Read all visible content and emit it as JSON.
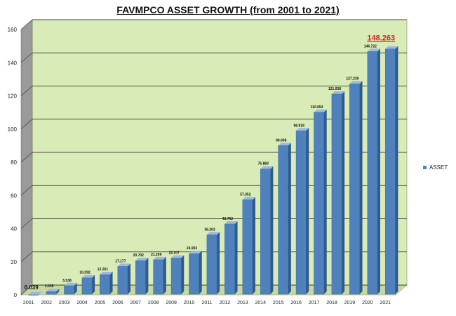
{
  "chart_data": {
    "type": "bar",
    "title": "FAVMPCO ASSET GROWTH (from 2001 to 2021)",
    "xlabel": "",
    "ylabel": "",
    "ylim": [
      0,
      160
    ],
    "yticks": [
      0,
      20,
      40,
      60,
      80,
      100,
      120,
      140,
      160
    ],
    "grid": true,
    "legend_position": "right",
    "categories": [
      "2001",
      "2002",
      "2003",
      "2004",
      "2005",
      "2006",
      "2007",
      "2008",
      "2009",
      "2010",
      "2011",
      "2012",
      "2013",
      "2014",
      "2015",
      "2016",
      "2017",
      "2018",
      "2019",
      "2020",
      "2021"
    ],
    "series": [
      {
        "name": "ASSET",
        "values": [
          0.039,
          2.035,
          5.538,
          10.292,
          12.261,
          17.177,
          20.702,
          21.209,
          22.207,
          24.903,
          36.263,
          42.762,
          57.352,
          75.883,
          90.008,
          98.919,
          110.054,
          121.058,
          127.239,
          146.722,
          148.263
        ],
        "labels": [
          "0.039",
          "2.035",
          "5.538",
          "10.292",
          "12.261",
          "17.177",
          "20.702",
          "21.209",
          "22.207",
          "24.903",
          "36.263",
          "42.762",
          "57.352",
          "75.883",
          "90.008",
          "98.919",
          "110.054",
          "121.058",
          "127.239",
          "146.722",
          "148.263"
        ]
      }
    ],
    "colors": {
      "bar_front": "#4F81BD",
      "bar_side": "#2E5A8E",
      "bar_top": "#9DB9DE",
      "plot_background": "#D9EBB7",
      "left_wall": "#9A9A9A",
      "floor": "#C8D8A0",
      "highlight_label": "#E02020"
    }
  }
}
